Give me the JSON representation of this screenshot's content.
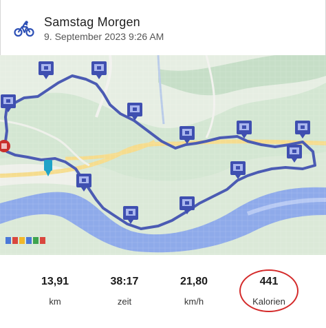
{
  "activity": {
    "title": "Samstag Morgen",
    "datetime": "9. September 2023 9:26 AM",
    "type_icon": "bicycle-icon"
  },
  "map": {
    "route_color": "#4b5bb3",
    "river_color": "#8aa6e6",
    "land_color": "#cfe3cf",
    "road_color": "#f3d98a",
    "marker_icon": "photo-marker-icon",
    "start_marker_icon": "start-pin-icon"
  },
  "stats": [
    {
      "id": "distance",
      "value": "13,91",
      "unit": "km"
    },
    {
      "id": "time",
      "value": "38:17",
      "unit": "zeit"
    },
    {
      "id": "speed",
      "value": "21,80",
      "unit": "km/h"
    },
    {
      "id": "calories",
      "value": "441",
      "unit": "Kalorien",
      "highlighted": true
    }
  ],
  "highlight_color": "#d42a2a"
}
